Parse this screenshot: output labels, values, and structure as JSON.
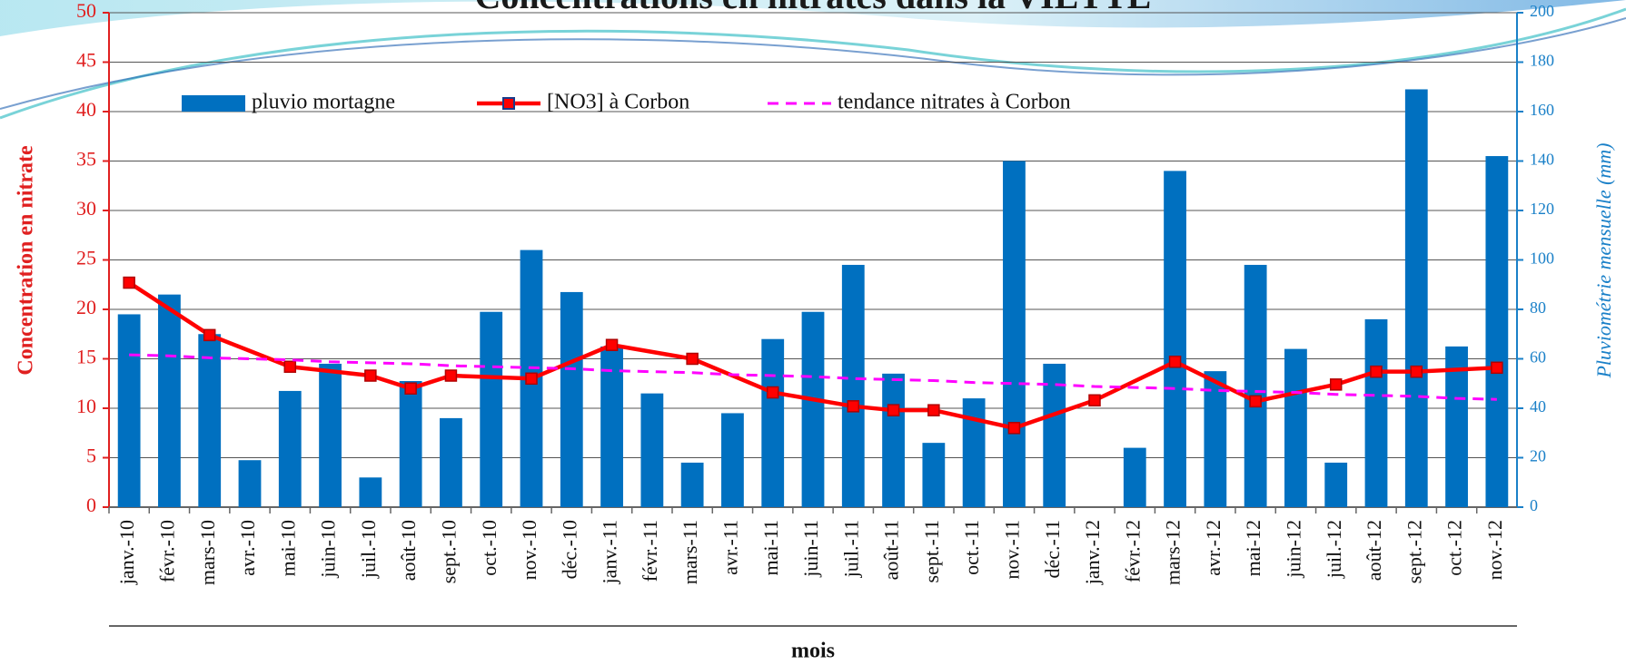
{
  "chart_data": {
    "type": "bar-line",
    "title": "Concentrations en nitrates dans la VIETTE",
    "y_label": "Concentration en nitrate",
    "y2_label": "Pluviométrie mensuelle (mm)",
    "x_label": "mois",
    "categories": [
      "janv.-10",
      "févr.-10",
      "mars-10",
      "avr.-10",
      "mai-10",
      "juin-10",
      "juil.-10",
      "août-10",
      "sept.-10",
      "oct.-10",
      "nov.-10",
      "déc.-10",
      "janv.-11",
      "févr.-11",
      "mars-11",
      "avr.-11",
      "mai-11",
      "juin-11",
      "juil.-11",
      "août-11",
      "sept.-11",
      "oct.-11",
      "nov.-11",
      "déc.-11",
      "janv.-12",
      "févr.-12",
      "mars-12",
      "avr.-12",
      "mai-12",
      "juin-12",
      "juil.-12",
      "août-12",
      "sept.-12",
      "oct.-12",
      "nov.-12"
    ],
    "series": [
      {
        "name": "pluvio mortagne",
        "type": "bar",
        "axis": "y2",
        "color": "#0070c0",
        "values": [
          78,
          86,
          70,
          19,
          47,
          58,
          12,
          51,
          36,
          79,
          104,
          87,
          65,
          46,
          18,
          38,
          68,
          79,
          98,
          54,
          26,
          44,
          140,
          58,
          null,
          24,
          136,
          55,
          98,
          64,
          18,
          76,
          169,
          65,
          142
        ]
      },
      {
        "name": "[NO3] à Corbon",
        "type": "line",
        "color": "#ff0000",
        "marker": "square",
        "values": [
          22.7,
          null,
          17.4,
          null,
          14.2,
          null,
          13.3,
          12,
          13.3,
          null,
          13,
          null,
          16.4,
          null,
          15,
          null,
          11.6,
          null,
          10.2,
          9.8,
          9.8,
          null,
          8,
          null,
          10.8,
          null,
          14.7,
          null,
          10.7,
          null,
          12.4,
          13.7,
          13.7,
          null,
          14.1
        ]
      },
      {
        "name": "tendance nitrates à Corbon",
        "type": "line",
        "color": "#ff00ff",
        "dashed": true,
        "values": [
          15.4,
          15.3,
          15.1,
          15.0,
          14.9,
          14.7,
          14.6,
          14.5,
          14.3,
          14.2,
          14.1,
          14.0,
          13.8,
          13.7,
          13.6,
          13.4,
          13.3,
          13.2,
          13.0,
          12.9,
          12.8,
          12.6,
          12.5,
          12.4,
          12.2,
          12.1,
          12.0,
          11.8,
          11.7,
          11.6,
          11.4,
          11.3,
          11.2,
          11.0,
          10.9
        ]
      }
    ],
    "ylim": [
      0,
      50
    ],
    "yticks": [
      0,
      5,
      10,
      15,
      20,
      25,
      30,
      35,
      40,
      45,
      50
    ],
    "y2lim": [
      0,
      200
    ],
    "y2ticks": [
      0,
      20,
      40,
      60,
      80,
      100,
      120,
      140,
      160,
      180,
      200
    ],
    "grid": true
  }
}
